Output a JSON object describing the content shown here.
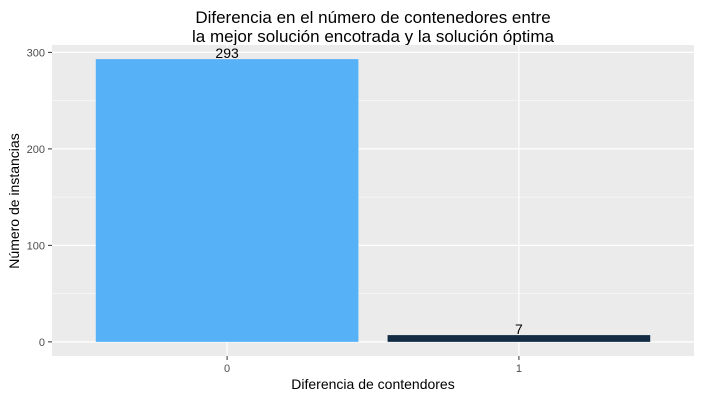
{
  "chart_data": {
    "type": "bar",
    "title_lines": [
      "Diferencia en el número de contenedores entre",
      "la mejor solución encotrada y la solución óptima"
    ],
    "xlabel": "Diferencia de contendores",
    "ylabel": "Número de instancias",
    "categories": [
      "0",
      "1"
    ],
    "values": [
      293,
      7
    ],
    "data_labels": [
      "293",
      "7"
    ],
    "bar_colors": [
      "#56B1F7",
      "#132B43"
    ],
    "ylim": [
      -14.65,
      307.65
    ],
    "yticks": [
      0,
      100,
      200,
      300
    ],
    "grid": true,
    "legend": "none",
    "panel_background": "#EBEBEB",
    "grid_color": "#FFFFFF"
  }
}
